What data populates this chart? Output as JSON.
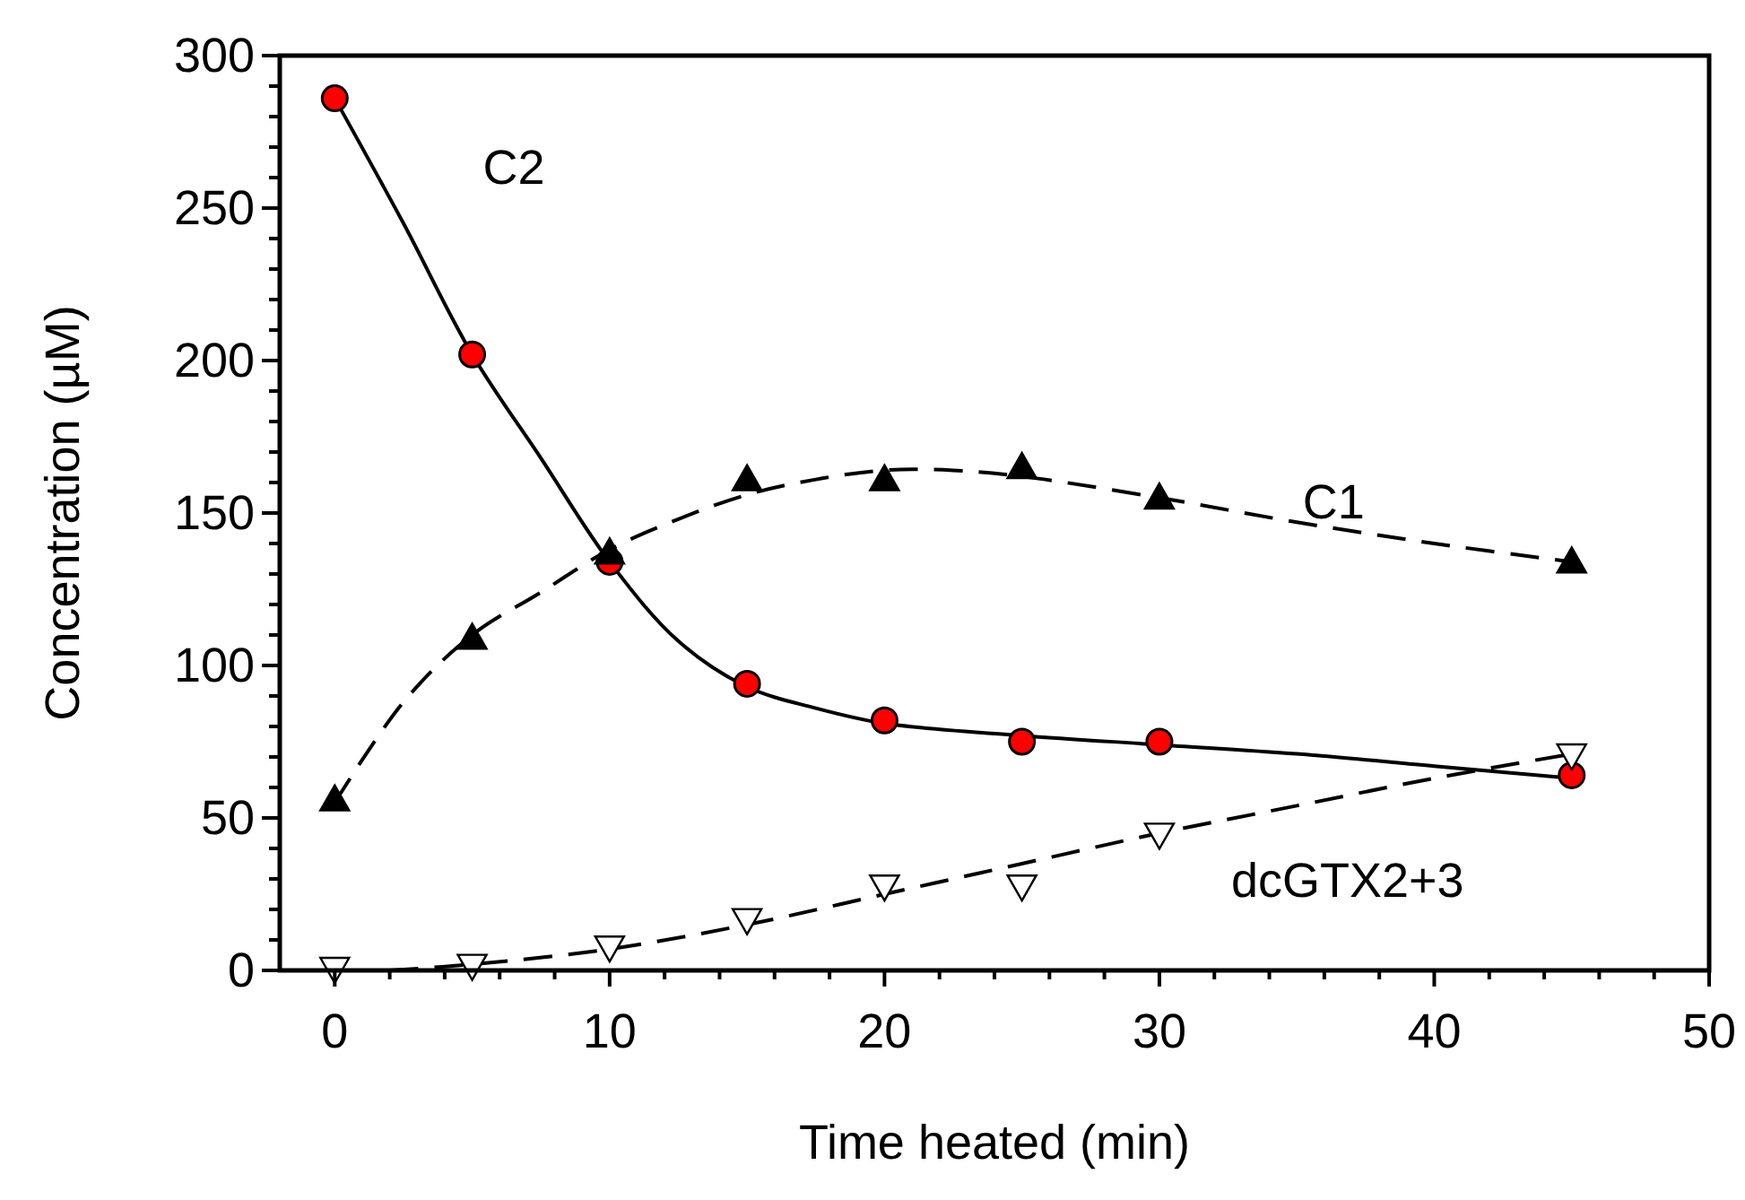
{
  "chart_data": {
    "type": "scatter",
    "xlabel": "Time heated (min)",
    "ylabel": "Concentration (µM)",
    "xlim": [
      -2,
      50
    ],
    "ylim": [
      0,
      300
    ],
    "xticks": [
      0,
      {
        "value": 2,
        "label": null
      },
      {
        "value": 4,
        "label": null
      },
      {
        "value": 6,
        "label": null
      },
      {
        "value": 8,
        "label": null
      },
      10,
      {
        "value": 12,
        "label": null
      },
      {
        "value": 14,
        "label": null
      },
      {
        "value": 16,
        "label": null
      },
      {
        "value": 18,
        "label": null
      },
      20,
      {
        "value": 22,
        "label": null
      },
      {
        "value": 24,
        "label": null
      },
      {
        "value": 26,
        "label": null
      },
      {
        "value": 28,
        "label": null
      },
      30,
      {
        "value": 32,
        "label": null
      },
      {
        "value": 34,
        "label": null
      },
      {
        "value": 36,
        "label": null
      },
      {
        "value": 38,
        "label": null
      },
      40,
      {
        "value": 42,
        "label": null
      },
      {
        "value": 44,
        "label": null
      },
      {
        "value": 46,
        "label": null
      },
      {
        "value": 48,
        "label": null
      },
      50
    ],
    "yticks": [
      0,
      {
        "value": 10,
        "label": null
      },
      {
        "value": 20,
        "label": null
      },
      {
        "value": 30,
        "label": null
      },
      {
        "value": 40,
        "label": null
      },
      50,
      {
        "value": 60,
        "label": null
      },
      {
        "value": 70,
        "label": null
      },
      {
        "value": 80,
        "label": null
      },
      {
        "value": 90,
        "label": null
      },
      100,
      {
        "value": 110,
        "label": null
      },
      {
        "value": 120,
        "label": null
      },
      {
        "value": 130,
        "label": null
      },
      {
        "value": 140,
        "label": null
      },
      150,
      {
        "value": 160,
        "label": null
      },
      {
        "value": 170,
        "label": null
      },
      {
        "value": 180,
        "label": null
      },
      {
        "value": 190,
        "label": null
      },
      200,
      {
        "value": 210,
        "label": null
      },
      {
        "value": 220,
        "label": null
      },
      {
        "value": 230,
        "label": null
      },
      {
        "value": 240,
        "label": null
      },
      250,
      {
        "value": 260,
        "label": null
      },
      {
        "value": 270,
        "label": null
      },
      {
        "value": 280,
        "label": null
      },
      {
        "value": 290,
        "label": null
      },
      300
    ],
    "series": [
      {
        "type": "line",
        "color": "#000000",
        "marker": "none",
        "line_style": "solid",
        "x": [
          0,
          2.5,
          5,
          7.5,
          10,
          12.5,
          15,
          17.5,
          20,
          25,
          30,
          35,
          40,
          45
        ],
        "values": [
          286,
          245,
          202,
          168,
          134,
          108,
          93,
          86,
          81,
          77,
          74,
          71,
          67,
          63
        ]
      },
      {
        "type": "line",
        "color": "#000000",
        "marker": "none",
        "line_style": "dashed",
        "x": [
          0,
          2.5,
          5,
          7.5,
          10,
          12.5,
          15,
          17.5,
          20,
          22.5,
          25,
          30,
          35,
          40,
          45
        ],
        "values": [
          55,
          88,
          110,
          124,
          138,
          148,
          156,
          161,
          164,
          164,
          162,
          155,
          147,
          140,
          134
        ]
      },
      {
        "type": "line",
        "color": "#000000",
        "marker": "none",
        "line_style": "dashed",
        "x": [
          2,
          5,
          10,
          15,
          20,
          25,
          30,
          35,
          40,
          45
        ],
        "values": [
          0,
          2,
          7,
          15,
          25,
          35,
          45,
          54,
          63,
          71
        ]
      },
      {
        "name": "C2",
        "color": "#ff0000",
        "marker": "circle",
        "x": [
          0,
          5,
          10,
          15,
          20,
          25,
          30,
          45
        ],
        "values": [
          286,
          202,
          134,
          94,
          82,
          75,
          75,
          64
        ]
      },
      {
        "name": "C1",
        "color": "#000000",
        "marker": "triangle",
        "x": [
          0,
          5,
          10,
          15,
          20,
          25,
          30,
          45
        ],
        "values": [
          56,
          109,
          137,
          161,
          161,
          165,
          155,
          134
        ]
      },
      {
        "name": "dcGTX2+3",
        "color": "#ffffff",
        "marker": "triangle-down",
        "x": [
          0,
          5,
          10,
          15,
          20,
          25,
          30,
          45
        ],
        "values": [
          0,
          1,
          7,
          16,
          27,
          27,
          44,
          70
        ]
      }
    ]
  }
}
